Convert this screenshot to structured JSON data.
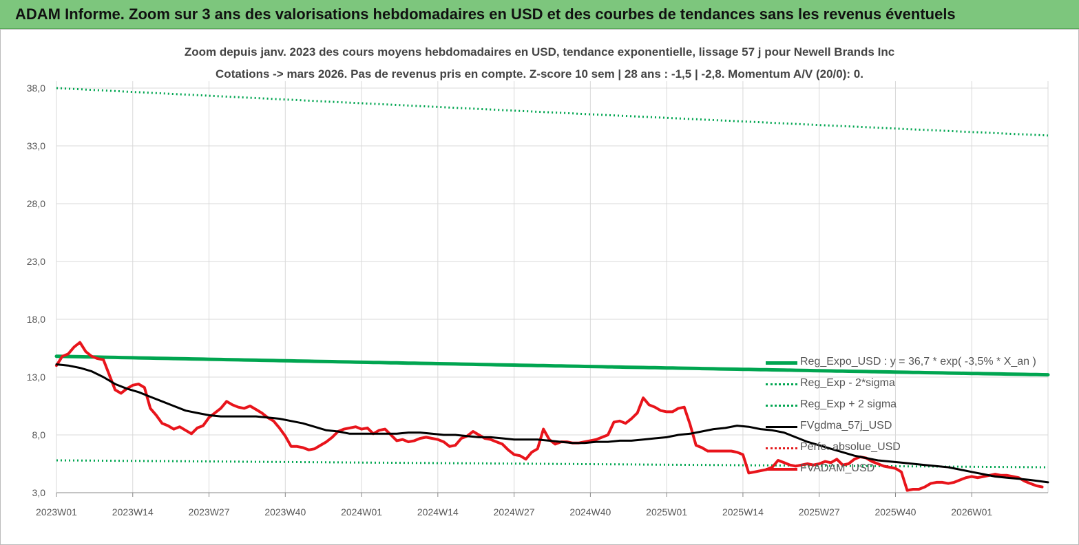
{
  "banner": {
    "title": "ADAM Informe. Zoom sur 3 ans des valorisations hebdomadaires en USD et des courbes de tendances sans les revenus éventuels"
  },
  "chart_data": {
    "type": "line",
    "title": "Zoom depuis janv. 2023 des cours moyens hebdomadaires en USD, tendance exponentielle, lissage 57 j pour Newell Brands Inc",
    "subtitle": "Cotations -> mars 2026. Pas de revenus pris en compte. Z-score 10 sem | 28 ans : -1,5 | -2,8. Momentum A/V (20/0): 0.",
    "x_tick_labels": [
      "2023W01",
      "2023W14",
      "2023W27",
      "2023W40",
      "2024W01",
      "2024W14",
      "2024W27",
      "2024W40",
      "2025W01",
      "2025W14",
      "2025W27",
      "2025W40",
      "2026W01"
    ],
    "x_range_weeks": [
      0,
      169
    ],
    "y_tick_labels": [
      "3,0",
      "8,0",
      "13,0",
      "18,0",
      "23,0",
      "28,0",
      "33,0",
      "38,0"
    ],
    "y_ticks": [
      3,
      8,
      13,
      18,
      23,
      28,
      33,
      38
    ],
    "ylim": [
      3,
      40
    ],
    "grid": true,
    "legend_position": "right",
    "series": [
      {
        "name": "Reg_Expo_USD : y = 36,7 * exp( -3,5% *  X_an )",
        "color": "#00a550",
        "style": "solid-thick",
        "points": [
          [
            0,
            14.8
          ],
          [
            169,
            13.2
          ]
        ]
      },
      {
        "name": "Reg_Exp - 2*sigma",
        "color": "#00a550",
        "style": "dotted",
        "points": [
          [
            0,
            5.8
          ],
          [
            169,
            5.2
          ]
        ]
      },
      {
        "name": "Reg_Exp + 2 sigma",
        "color": "#00a550",
        "style": "dotted",
        "points": [
          [
            0,
            38.0
          ],
          [
            169,
            33.9
          ]
        ]
      },
      {
        "name": "FVgdma_57j_USD",
        "color": "#000000",
        "style": "solid",
        "points": [
          [
            0,
            14.1
          ],
          [
            2,
            14.0
          ],
          [
            4,
            13.8
          ],
          [
            6,
            13.5
          ],
          [
            8,
            13.0
          ],
          [
            10,
            12.4
          ],
          [
            12,
            12.0
          ],
          [
            14,
            11.7
          ],
          [
            16,
            11.3
          ],
          [
            18,
            10.9
          ],
          [
            20,
            10.5
          ],
          [
            22,
            10.1
          ],
          [
            24,
            9.9
          ],
          [
            26,
            9.7
          ],
          [
            28,
            9.6
          ],
          [
            30,
            9.6
          ],
          [
            32,
            9.6
          ],
          [
            34,
            9.6
          ],
          [
            36,
            9.5
          ],
          [
            38,
            9.4
          ],
          [
            40,
            9.2
          ],
          [
            42,
            9.0
          ],
          [
            44,
            8.7
          ],
          [
            46,
            8.4
          ],
          [
            48,
            8.3
          ],
          [
            50,
            8.1
          ],
          [
            52,
            8.1
          ],
          [
            54,
            8.1
          ],
          [
            56,
            8.1
          ],
          [
            58,
            8.1
          ],
          [
            60,
            8.2
          ],
          [
            62,
            8.2
          ],
          [
            64,
            8.1
          ],
          [
            66,
            8.0
          ],
          [
            68,
            8.0
          ],
          [
            70,
            7.9
          ],
          [
            72,
            7.8
          ],
          [
            74,
            7.8
          ],
          [
            76,
            7.7
          ],
          [
            78,
            7.6
          ],
          [
            80,
            7.6
          ],
          [
            82,
            7.6
          ],
          [
            84,
            7.5
          ],
          [
            86,
            7.4
          ],
          [
            88,
            7.3
          ],
          [
            90,
            7.3
          ],
          [
            92,
            7.4
          ],
          [
            94,
            7.4
          ],
          [
            96,
            7.5
          ],
          [
            98,
            7.5
          ],
          [
            100,
            7.6
          ],
          [
            102,
            7.7
          ],
          [
            104,
            7.8
          ],
          [
            106,
            8.0
          ],
          [
            108,
            8.1
          ],
          [
            110,
            8.3
          ],
          [
            112,
            8.5
          ],
          [
            114,
            8.6
          ],
          [
            116,
            8.8
          ],
          [
            118,
            8.7
          ],
          [
            120,
            8.5
          ],
          [
            122,
            8.4
          ],
          [
            124,
            8.2
          ],
          [
            126,
            7.8
          ],
          [
            128,
            7.4
          ],
          [
            130,
            7.1
          ],
          [
            132,
            6.8
          ],
          [
            134,
            6.5
          ],
          [
            136,
            6.2
          ],
          [
            138,
            6.0
          ],
          [
            140,
            5.8
          ],
          [
            142,
            5.7
          ],
          [
            144,
            5.6
          ],
          [
            146,
            5.5
          ],
          [
            148,
            5.4
          ],
          [
            150,
            5.3
          ],
          [
            152,
            5.2
          ],
          [
            154,
            5.0
          ],
          [
            156,
            4.8
          ],
          [
            158,
            4.6
          ],
          [
            160,
            4.4
          ],
          [
            162,
            4.3
          ],
          [
            164,
            4.2
          ],
          [
            166,
            4.1
          ],
          [
            169,
            3.9
          ]
        ]
      },
      {
        "name": "Perfo. absolue_USD",
        "color": "#e31a1c",
        "style": "dotted",
        "points": []
      },
      {
        "name": "FVADAM_USD",
        "color": "#e8141b",
        "style": "solid-thick",
        "points": [
          [
            0,
            14.0
          ],
          [
            1,
            14.8
          ],
          [
            2,
            15.0
          ],
          [
            3,
            15.6
          ],
          [
            4,
            16.0
          ],
          [
            5,
            15.2
          ],
          [
            6,
            14.8
          ],
          [
            7,
            14.6
          ],
          [
            8,
            14.5
          ],
          [
            9,
            13.2
          ],
          [
            10,
            11.9
          ],
          [
            11,
            11.6
          ],
          [
            12,
            12.0
          ],
          [
            13,
            12.3
          ],
          [
            14,
            12.4
          ],
          [
            15,
            12.1
          ],
          [
            16,
            10.3
          ],
          [
            17,
            9.7
          ],
          [
            18,
            9.0
          ],
          [
            19,
            8.8
          ],
          [
            20,
            8.5
          ],
          [
            21,
            8.7
          ],
          [
            22,
            8.4
          ],
          [
            23,
            8.1
          ],
          [
            24,
            8.6
          ],
          [
            25,
            8.8
          ],
          [
            26,
            9.5
          ],
          [
            27,
            9.9
          ],
          [
            28,
            10.3
          ],
          [
            29,
            10.9
          ],
          [
            30,
            10.6
          ],
          [
            31,
            10.4
          ],
          [
            32,
            10.3
          ],
          [
            33,
            10.5
          ],
          [
            34,
            10.2
          ],
          [
            35,
            9.9
          ],
          [
            36,
            9.5
          ],
          [
            37,
            9.2
          ],
          [
            38,
            8.6
          ],
          [
            39,
            7.9
          ],
          [
            40,
            7.0
          ],
          [
            41,
            7.0
          ],
          [
            42,
            6.9
          ],
          [
            43,
            6.7
          ],
          [
            44,
            6.8
          ],
          [
            45,
            7.1
          ],
          [
            46,
            7.4
          ],
          [
            47,
            7.8
          ],
          [
            48,
            8.3
          ],
          [
            49,
            8.5
          ],
          [
            50,
            8.6
          ],
          [
            51,
            8.7
          ],
          [
            52,
            8.5
          ],
          [
            53,
            8.6
          ],
          [
            54,
            8.1
          ],
          [
            55,
            8.4
          ],
          [
            56,
            8.5
          ],
          [
            57,
            8.0
          ],
          [
            58,
            7.5
          ],
          [
            59,
            7.6
          ],
          [
            60,
            7.4
          ],
          [
            61,
            7.5
          ],
          [
            62,
            7.7
          ],
          [
            63,
            7.8
          ],
          [
            64,
            7.7
          ],
          [
            65,
            7.6
          ],
          [
            66,
            7.4
          ],
          [
            67,
            7.0
          ],
          [
            68,
            7.1
          ],
          [
            69,
            7.7
          ],
          [
            70,
            7.9
          ],
          [
            71,
            8.3
          ],
          [
            72,
            8.0
          ],
          [
            73,
            7.7
          ],
          [
            74,
            7.6
          ],
          [
            75,
            7.4
          ],
          [
            76,
            7.2
          ],
          [
            77,
            6.7
          ],
          [
            78,
            6.3
          ],
          [
            79,
            6.2
          ],
          [
            80,
            5.9
          ],
          [
            81,
            6.5
          ],
          [
            82,
            6.8
          ],
          [
            83,
            8.5
          ],
          [
            84,
            7.6
          ],
          [
            85,
            7.2
          ],
          [
            86,
            7.4
          ],
          [
            87,
            7.4
          ],
          [
            88,
            7.3
          ],
          [
            89,
            7.3
          ],
          [
            90,
            7.4
          ],
          [
            91,
            7.5
          ],
          [
            92,
            7.6
          ],
          [
            93,
            7.8
          ],
          [
            94,
            8.0
          ],
          [
            95,
            9.1
          ],
          [
            96,
            9.2
          ],
          [
            97,
            9.0
          ],
          [
            98,
            9.4
          ],
          [
            99,
            9.9
          ],
          [
            100,
            11.2
          ],
          [
            101,
            10.6
          ],
          [
            102,
            10.4
          ],
          [
            103,
            10.1
          ],
          [
            104,
            10.0
          ],
          [
            105,
            10.0
          ],
          [
            106,
            10.3
          ],
          [
            107,
            10.4
          ],
          [
            108,
            8.9
          ],
          [
            109,
            7.1
          ],
          [
            110,
            6.9
          ],
          [
            111,
            6.6
          ],
          [
            112,
            6.6
          ],
          [
            113,
            6.6
          ],
          [
            114,
            6.6
          ],
          [
            115,
            6.6
          ],
          [
            116,
            6.5
          ],
          [
            117,
            6.3
          ],
          [
            118,
            4.7
          ],
          [
            119,
            4.8
          ],
          [
            120,
            4.9
          ],
          [
            121,
            5.0
          ],
          [
            122,
            5.2
          ],
          [
            123,
            5.8
          ],
          [
            124,
            5.6
          ],
          [
            125,
            5.4
          ],
          [
            126,
            5.3
          ],
          [
            127,
            5.4
          ],
          [
            128,
            5.5
          ],
          [
            129,
            5.4
          ],
          [
            130,
            5.5
          ],
          [
            131,
            5.7
          ],
          [
            132,
            5.6
          ],
          [
            133,
            5.9
          ],
          [
            134,
            5.4
          ],
          [
            135,
            5.5
          ],
          [
            136,
            5.9
          ],
          [
            137,
            6.1
          ],
          [
            138,
            6.0
          ],
          [
            139,
            5.7
          ],
          [
            140,
            5.5
          ],
          [
            141,
            5.3
          ],
          [
            142,
            5.2
          ],
          [
            143,
            5.1
          ],
          [
            144,
            4.8
          ],
          [
            145,
            3.2
          ],
          [
            146,
            3.3
          ],
          [
            147,
            3.3
          ],
          [
            148,
            3.5
          ],
          [
            149,
            3.8
          ],
          [
            150,
            3.9
          ],
          [
            151,
            3.9
          ],
          [
            152,
            3.8
          ],
          [
            153,
            3.9
          ],
          [
            154,
            4.1
          ],
          [
            155,
            4.3
          ],
          [
            156,
            4.4
          ],
          [
            157,
            4.3
          ],
          [
            158,
            4.4
          ],
          [
            159,
            4.5
          ],
          [
            160,
            4.6
          ],
          [
            161,
            4.5
          ],
          [
            162,
            4.5
          ],
          [
            163,
            4.4
          ],
          [
            164,
            4.3
          ],
          [
            165,
            4.0
          ],
          [
            166,
            3.8
          ],
          [
            167,
            3.6
          ],
          [
            168,
            3.5
          ]
        ]
      }
    ]
  }
}
